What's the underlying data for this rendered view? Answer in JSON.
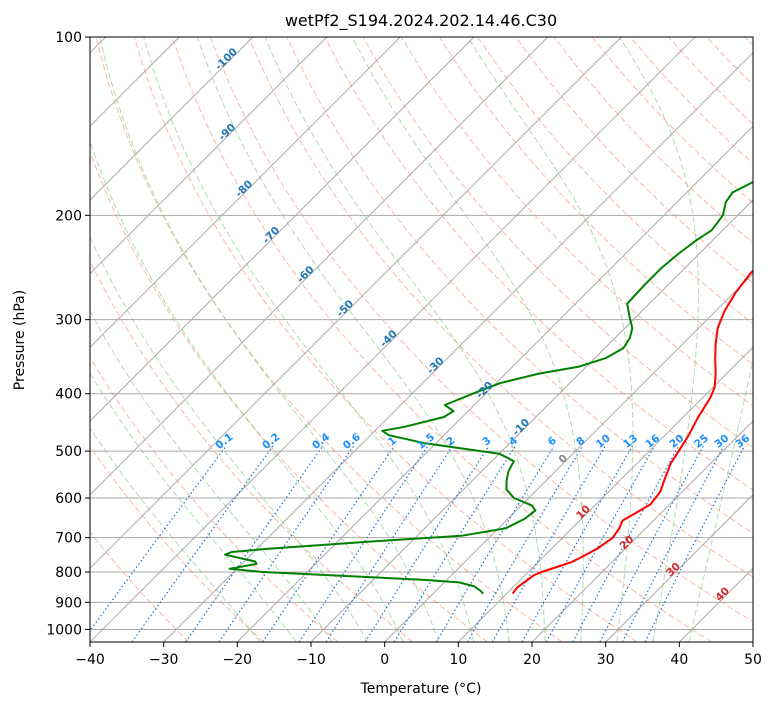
{
  "chart_data": {
    "type": "line",
    "title": "wetPf2_S194.2024.202.14.46.C30",
    "xlabel": "Temperature (°C)",
    "ylabel": "Pressure (hPa)",
    "xlim": [
      -40,
      50
    ],
    "ylim": [
      1050,
      100
    ],
    "y_scale": "log",
    "grid": true,
    "x_ticks": [
      "−40",
      "−30",
      "−20",
      "−10",
      "0",
      "10",
      "20",
      "30",
      "40",
      "50"
    ],
    "y_ticks": [
      "100",
      "200",
      "300",
      "400",
      "500",
      "600",
      "700",
      "800",
      "900",
      "1000"
    ],
    "isotherm_labels": [
      "-100",
      "-90",
      "-80",
      "-70",
      "-60",
      "-50",
      "-40",
      "-30",
      "-20",
      "-10",
      "0",
      "10",
      "20",
      "30",
      "40"
    ],
    "mixing_ratio_labels": [
      "0.1",
      "0.2",
      "0.4",
      "0.6",
      "1",
      "1.5",
      "2",
      "3",
      "4",
      "6",
      "8",
      "10",
      "13",
      "16",
      "20",
      "25",
      "30",
      "36"
    ],
    "series": [
      {
        "color": "#ff0000",
        "points": [
          [
            10.8,
            870
          ],
          [
            10.6,
            850
          ],
          [
            11.2,
            810
          ],
          [
            11.8,
            800
          ],
          [
            13.6,
            780
          ],
          [
            14.5,
            770
          ],
          [
            15.2,
            755
          ],
          [
            16.2,
            730
          ],
          [
            16.8,
            700
          ],
          [
            16.4,
            675
          ],
          [
            15.8,
            655
          ],
          [
            16.6,
            635
          ],
          [
            17.4,
            615
          ],
          [
            17.0,
            585
          ],
          [
            15.8,
            555
          ],
          [
            14.6,
            525
          ],
          [
            14.0,
            500
          ],
          [
            13.2,
            470
          ],
          [
            12.1,
            440
          ],
          [
            11.0,
            405
          ],
          [
            10.2,
            390
          ],
          [
            8.5,
            370
          ],
          [
            6.5,
            350
          ],
          [
            4.5,
            330
          ],
          [
            2.6,
            310
          ],
          [
            1.2,
            290
          ],
          [
            0.2,
            270
          ],
          [
            -0.4,
            250
          ],
          [
            -0.5,
            230
          ],
          [
            -0.1,
            215
          ],
          [
            1.6,
            205
          ],
          [
            3.8,
            198
          ],
          [
            6.2,
            190
          ],
          [
            8.6,
            180
          ],
          [
            10.1,
            170
          ],
          [
            11.1,
            160
          ],
          [
            11.7,
            150
          ],
          [
            12.1,
            140
          ],
          [
            12.5,
            130
          ],
          [
            13.5,
            120
          ],
          [
            15.0,
            112
          ],
          [
            16.2,
            105
          ],
          [
            18.0,
            100
          ]
        ]
      },
      {
        "color": "#008000",
        "points": [
          [
            6.8,
            870
          ],
          [
            6.0,
            860
          ],
          [
            4.5,
            845
          ],
          [
            2.0,
            833
          ],
          [
            -3.0,
            825
          ],
          [
            -12.0,
            815
          ],
          [
            -26.0,
            800
          ],
          [
            -31.0,
            790
          ],
          [
            -28.0,
            775
          ],
          [
            -28.5,
            768
          ],
          [
            -33.5,
            748
          ],
          [
            -33.0,
            740
          ],
          [
            -28.0,
            730
          ],
          [
            -15.0,
            710
          ],
          [
            -4.0,
            695
          ],
          [
            1.0,
            675
          ],
          [
            2.3,
            650
          ],
          [
            2.6,
            630
          ],
          [
            1.5,
            618
          ],
          [
            -2.0,
            600
          ],
          [
            -4.2,
            580
          ],
          [
            -5.4,
            560
          ],
          [
            -6.4,
            540
          ],
          [
            -7.0,
            520
          ],
          [
            -10.0,
            505
          ],
          [
            -21.5,
            485
          ],
          [
            -27.5,
            470
          ],
          [
            -29.0,
            462
          ],
          [
            -26.5,
            455
          ],
          [
            -22.5,
            438
          ],
          [
            -22.0,
            428
          ],
          [
            -24.0,
            418
          ],
          [
            -21.5,
            398
          ],
          [
            -19.5,
            384
          ],
          [
            -15.5,
            370
          ],
          [
            -11.0,
            360
          ],
          [
            -8.5,
            348
          ],
          [
            -7.5,
            335
          ],
          [
            -8.0,
            322
          ],
          [
            -9.0,
            310
          ],
          [
            -11.0,
            296
          ],
          [
            -13.0,
            282
          ],
          [
            -13.2,
            262
          ],
          [
            -13.2,
            245
          ],
          [
            -12.8,
            232
          ],
          [
            -12.2,
            220
          ],
          [
            -11.5,
            212
          ],
          [
            -12.0,
            200
          ],
          [
            -13.4,
            190
          ],
          [
            -13.8,
            183
          ],
          [
            -12.5,
            176
          ],
          [
            -11.5,
            172
          ],
          [
            -11.0,
            160
          ],
          [
            -9.5,
            152
          ],
          [
            -7.5,
            145
          ],
          [
            -5.0,
            137
          ],
          [
            -2.5,
            128
          ],
          [
            -0.8,
            120
          ],
          [
            0.3,
            112
          ],
          [
            0.7,
            105
          ],
          [
            0.8,
            100
          ]
        ]
      }
    ]
  }
}
